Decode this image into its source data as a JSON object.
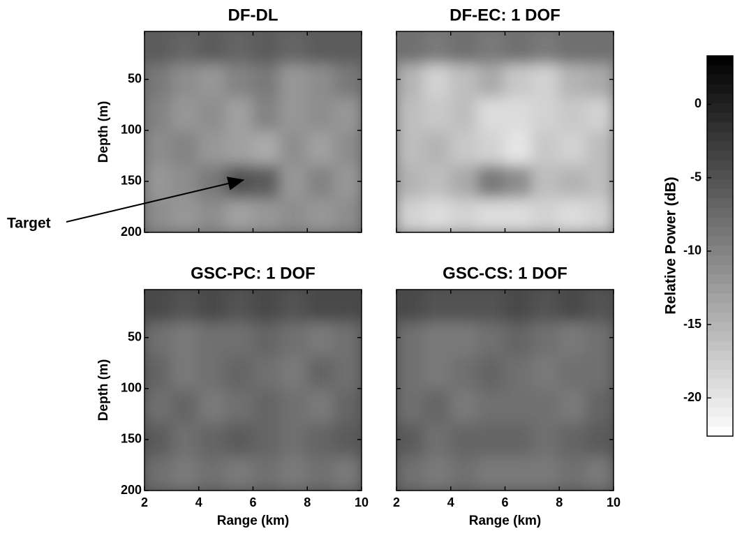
{
  "chart_data": [
    {
      "type": "heatmap",
      "title": "DF-DL",
      "ylabel": "Depth (m)",
      "x": [
        2.5,
        3.5,
        4.5,
        5.5,
        6.5,
        7.5,
        8.5,
        9.5
      ],
      "y": [
        19,
        52,
        85,
        118,
        151,
        184
      ],
      "values": [
        [
          -6,
          -7,
          -6,
          -7,
          -6,
          -7,
          -6,
          -6
        ],
        [
          -9,
          -11,
          -12,
          -10,
          -9,
          -12,
          -11,
          -9
        ],
        [
          -10,
          -12,
          -11,
          -13,
          -10,
          -12,
          -11,
          -12
        ],
        [
          -11,
          -10,
          -12,
          -13,
          -14,
          -11,
          -13,
          -11
        ],
        [
          -12,
          -11,
          -9,
          -5,
          -6,
          -12,
          -10,
          -12
        ],
        [
          -11,
          -12,
          -11,
          -13,
          -12,
          -11,
          -12,
          -11
        ]
      ],
      "xlim": [
        2,
        10
      ],
      "ylim": [
        3,
        200
      ],
      "xticks": [
        2,
        4,
        6,
        8,
        10
      ],
      "yticks": [
        50,
        100,
        150,
        200
      ],
      "xtick_labels": false,
      "ytick_labels": true,
      "annotation": {
        "text": "Target",
        "x": 6,
        "y": 150
      }
    },
    {
      "type": "heatmap",
      "title": "DF-EC: 1 DOF",
      "x": [
        2.5,
        3.5,
        4.5,
        5.5,
        6.5,
        7.5,
        8.5,
        9.5
      ],
      "y": [
        19,
        52,
        85,
        118,
        151,
        184
      ],
      "values": [
        [
          -8,
          -9,
          -8,
          -9,
          -8,
          -9,
          -8,
          -8
        ],
        [
          -15,
          -18,
          -16,
          -14,
          -17,
          -18,
          -15,
          -14
        ],
        [
          -16,
          -17,
          -16,
          -19,
          -19,
          -18,
          -17,
          -18
        ],
        [
          -16,
          -15,
          -17,
          -18,
          -20,
          -17,
          -18,
          -16
        ],
        [
          -15,
          -16,
          -14,
          -9,
          -11,
          -16,
          -15,
          -16
        ],
        [
          -18,
          -19,
          -18,
          -19,
          -19,
          -18,
          -19,
          -18
        ]
      ],
      "xlim": [
        2,
        10
      ],
      "ylim": [
        3,
        200
      ],
      "xticks": [
        2,
        4,
        6,
        8,
        10
      ],
      "yticks": [
        50,
        100,
        150,
        200
      ],
      "xtick_labels": false,
      "ytick_labels": false
    },
    {
      "type": "heatmap",
      "title": "GSC-PC: 1 DOF",
      "ylabel": "Depth (m)",
      "xlabel": "Range (km)",
      "x": [
        2.5,
        3.5,
        4.5,
        5.5,
        6.5,
        7.5,
        8.5,
        9.5
      ],
      "y": [
        19,
        52,
        85,
        118,
        151,
        184
      ],
      "values": [
        [
          -4,
          -5,
          -4,
          -5,
          -4,
          -5,
          -4,
          -4
        ],
        [
          -8,
          -9,
          -8,
          -8,
          -7,
          -8,
          -9,
          -8
        ],
        [
          -7,
          -9,
          -8,
          -7,
          -8,
          -9,
          -7,
          -8
        ],
        [
          -8,
          -7,
          -9,
          -8,
          -7,
          -8,
          -9,
          -7
        ],
        [
          -6,
          -8,
          -7,
          -6,
          -7,
          -8,
          -7,
          -6
        ],
        [
          -8,
          -9,
          -8,
          -9,
          -8,
          -9,
          -8,
          -9
        ]
      ],
      "xlim": [
        2,
        10
      ],
      "ylim": [
        3,
        200
      ],
      "xticks": [
        2,
        4,
        6,
        8,
        10
      ],
      "yticks": [
        50,
        100,
        150,
        200
      ],
      "xtick_labels": true,
      "ytick_labels": true
    },
    {
      "type": "heatmap",
      "title": "GSC-CS: 1 DOF",
      "xlabel": "Range (km)",
      "x": [
        2.5,
        3.5,
        4.5,
        5.5,
        6.5,
        7.5,
        8.5,
        9.5
      ],
      "y": [
        19,
        52,
        85,
        118,
        151,
        184
      ],
      "values": [
        [
          -4,
          -5,
          -5,
          -5,
          -4,
          -5,
          -4,
          -5
        ],
        [
          -8,
          -9,
          -9,
          -8,
          -7,
          -8,
          -9,
          -8
        ],
        [
          -8,
          -9,
          -8,
          -7,
          -8,
          -9,
          -8,
          -8
        ],
        [
          -8,
          -7,
          -9,
          -8,
          -8,
          -8,
          -9,
          -7
        ],
        [
          -6,
          -8,
          -7,
          -7,
          -7,
          -8,
          -7,
          -6
        ],
        [
          -8,
          -9,
          -8,
          -9,
          -9,
          -9,
          -8,
          -9
        ]
      ],
      "xlim": [
        2,
        10
      ],
      "ylim": [
        3,
        200
      ],
      "xticks": [
        2,
        4,
        6,
        8,
        10
      ],
      "yticks": [
        50,
        100,
        150,
        200
      ],
      "xtick_labels": true,
      "ytick_labels": false
    }
  ],
  "colorbar": {
    "label": "Relative Power (dB)",
    "clim": [
      -22.6,
      3.3
    ],
    "ticks": [
      0,
      -5,
      -10,
      -15,
      -20
    ],
    "colors": [
      "#ffffff",
      "#000000"
    ]
  }
}
